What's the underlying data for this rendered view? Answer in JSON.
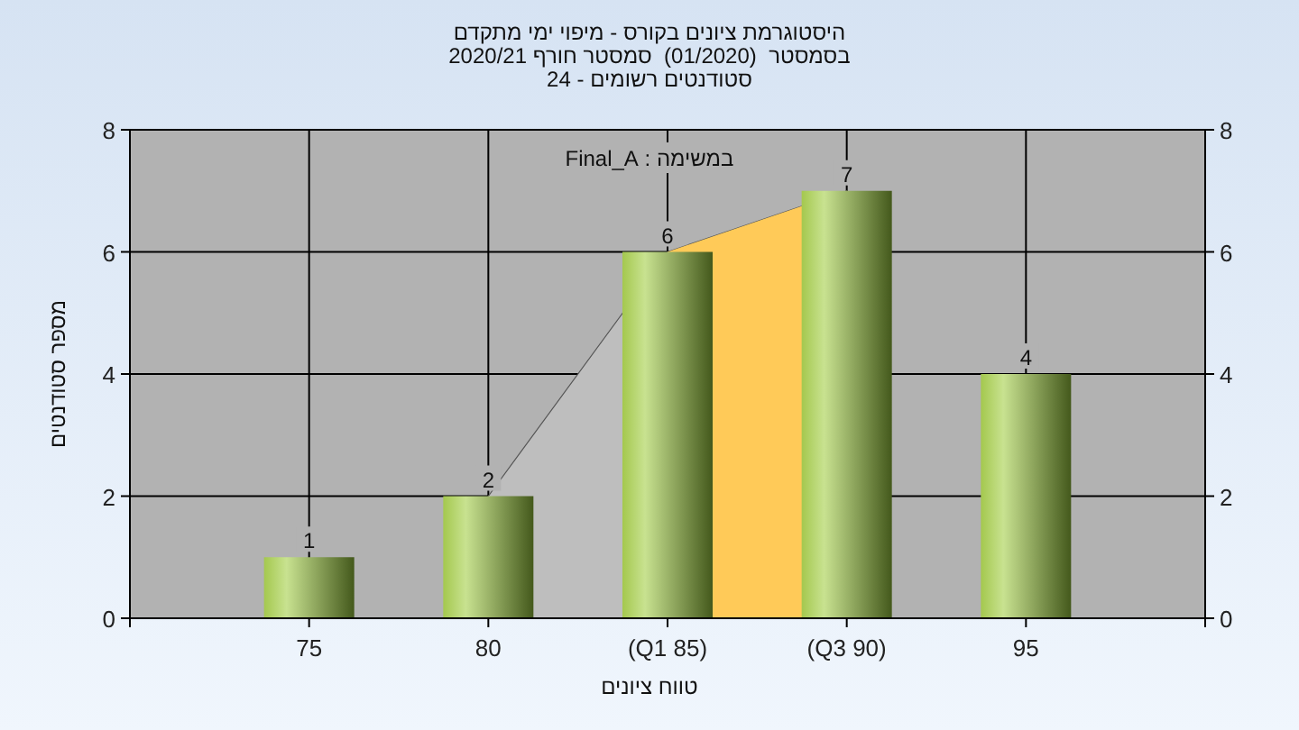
{
  "chart_data": {
    "type": "bar",
    "title": "היסטוגרמת ציונים בקורס - מיפוי ימי מתקדם",
    "subtitle": "בסמסטר  (01/2020)  סמסטר חורף 2020/21\nסטודנטים רשומים - 24",
    "xlabel": "טווח ציונים",
    "ylabel": "מספר סטודנטים",
    "annotations": [
      "במשימה : Final_A"
    ],
    "categories": [
      "75",
      "80",
      "(Q1 85)",
      "(Q3 90)",
      "95"
    ],
    "series": [
      {
        "type": "area",
        "color": "#bebebe",
        "values": [
          null,
          2,
          6,
          7,
          null
        ]
      },
      {
        "color": "#a4c84e",
        "values": [
          1,
          2,
          6,
          7,
          4
        ],
        "value_labels": [
          "1",
          "2",
          "6",
          "7",
          "4"
        ]
      }
    ],
    "bands": [
      {
        "axis": "x",
        "from": "(Q1 85)",
        "to": "(Q3 90)",
        "color": "#ffca58"
      }
    ],
    "ylim": [
      0,
      8
    ],
    "yticks": [
      0,
      2,
      4,
      6,
      8
    ],
    "y2lim": [
      0,
      8
    ],
    "y2ticks": [
      0,
      2,
      4,
      6,
      8
    ],
    "grid": true
  }
}
